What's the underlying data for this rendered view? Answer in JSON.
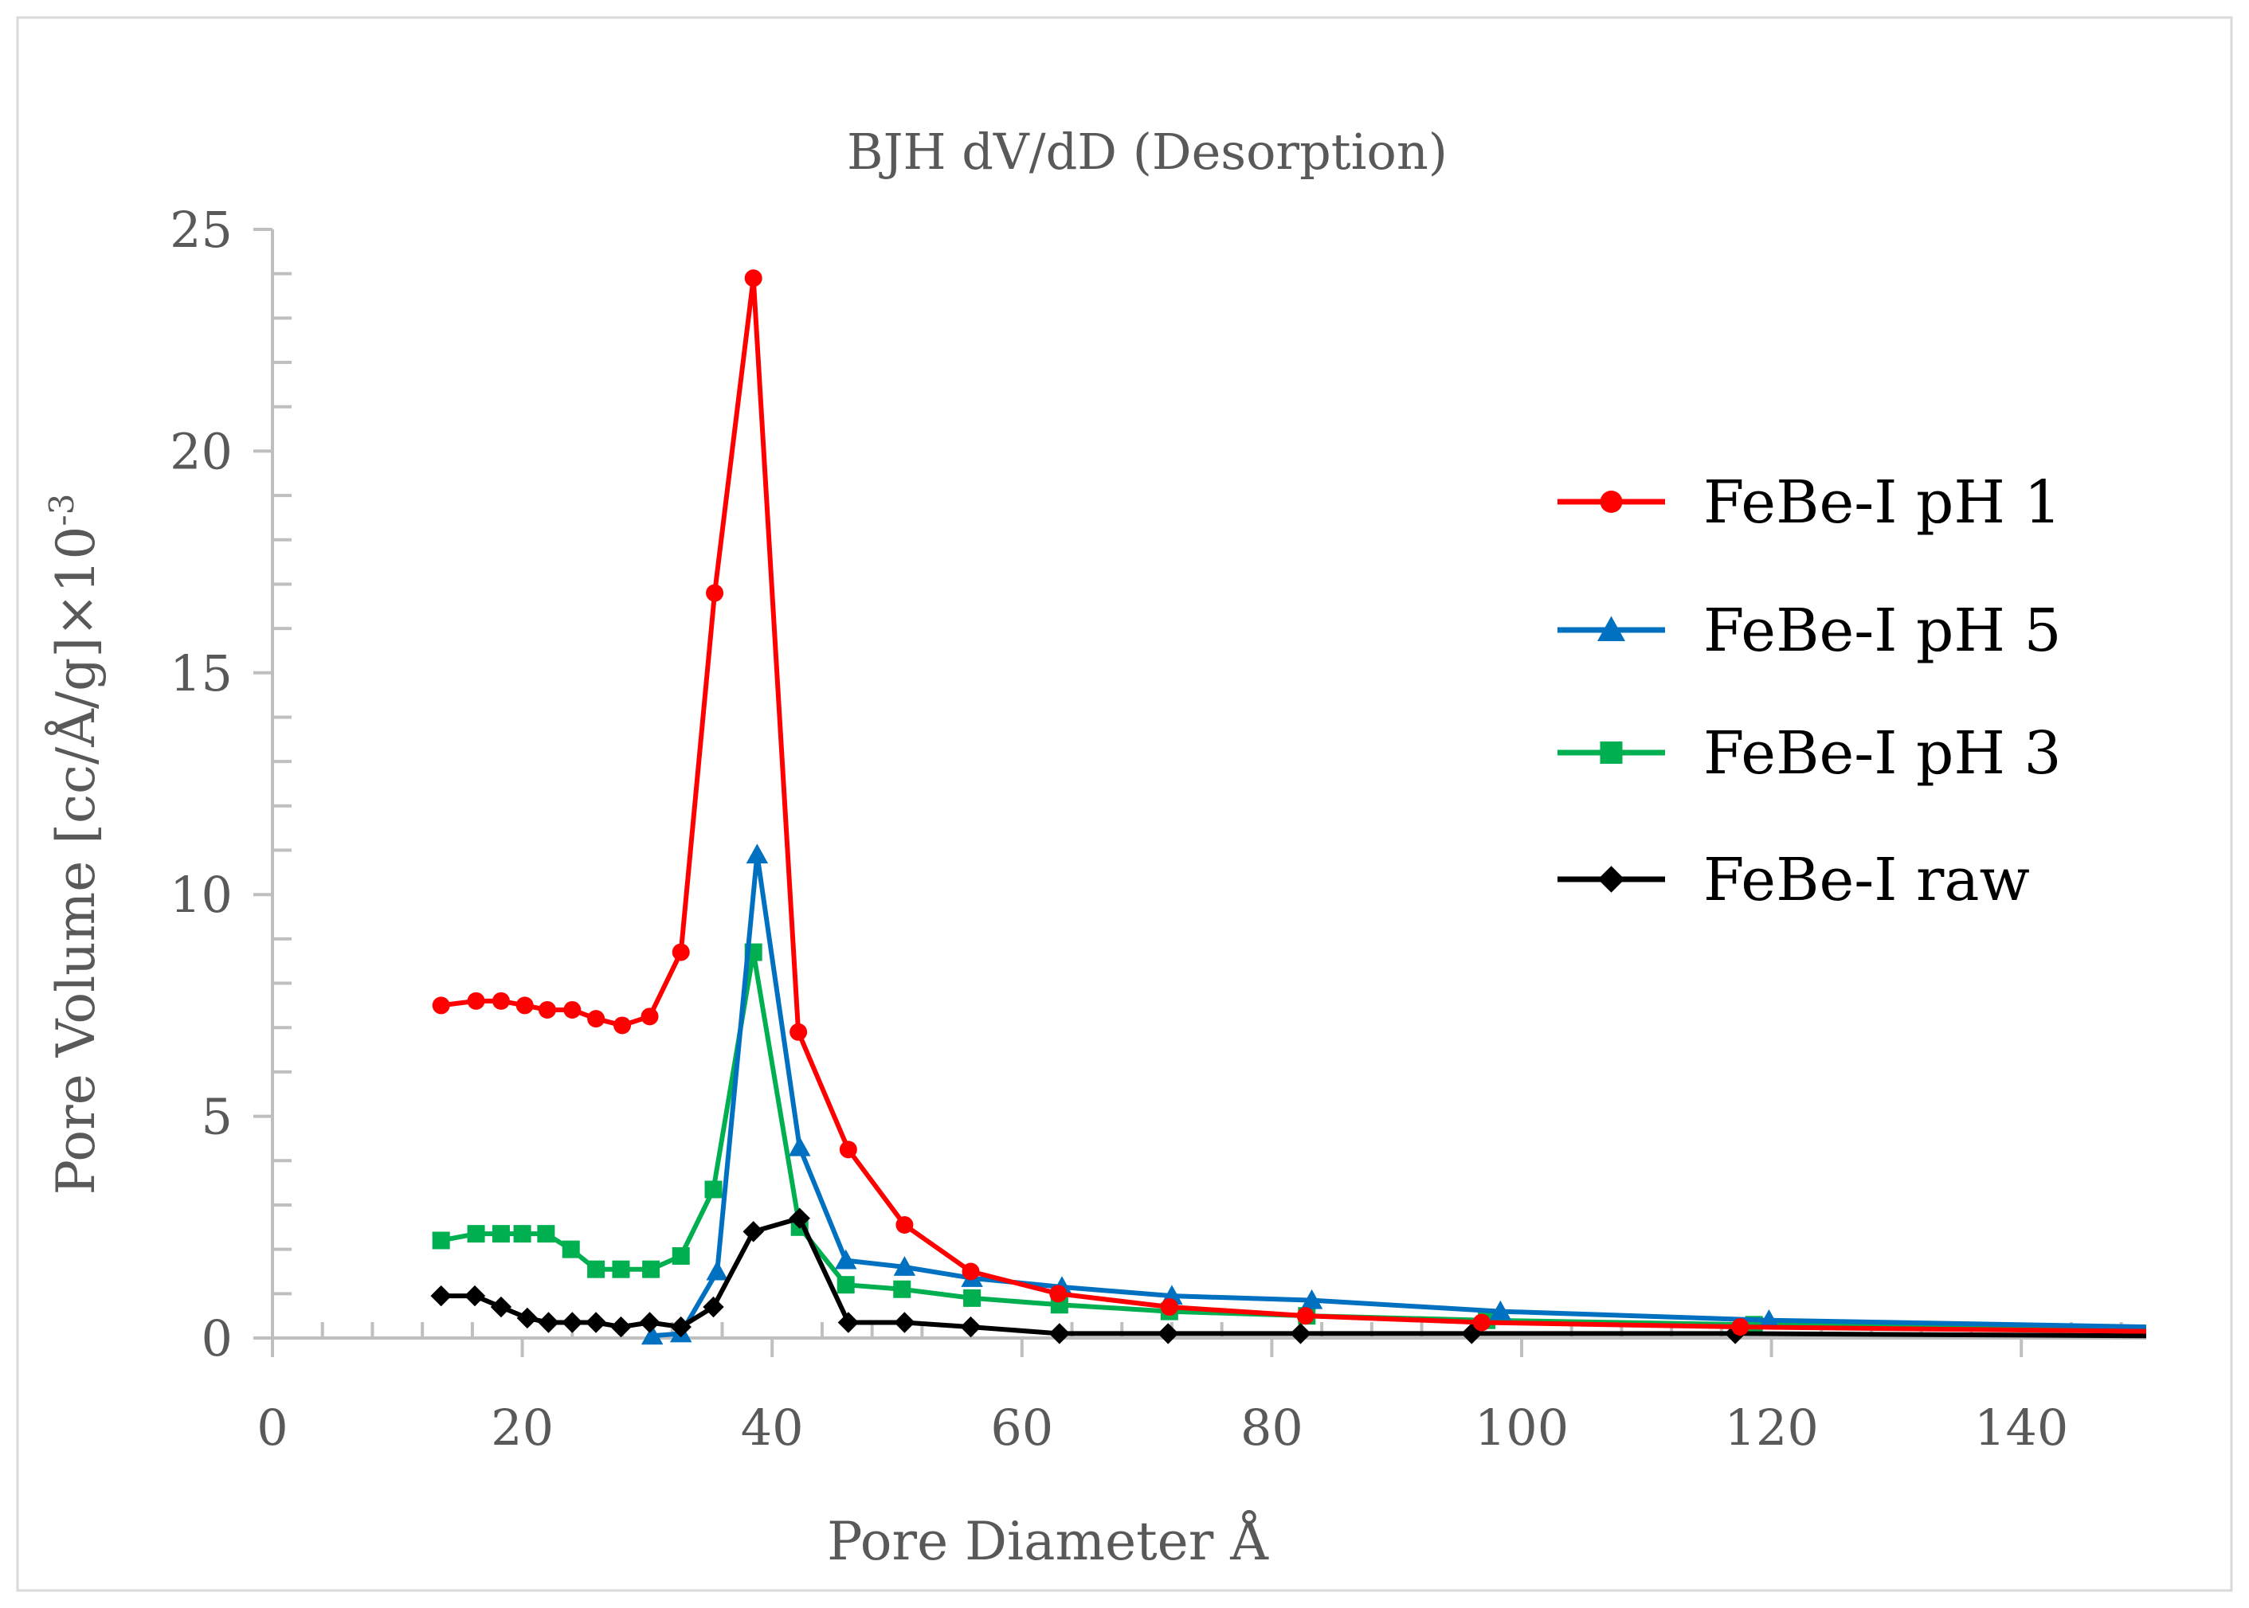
{
  "chart_data": {
    "type": "line",
    "title": "BJH dV/dD (Desorption)",
    "xlabel": "Pore Diameter Å",
    "ylabel": "Pore Volume [cc/Å/g]×10",
    "ylabel_exponent": "-3",
    "xlim": [
      0,
      150
    ],
    "ylim": [
      0,
      25
    ],
    "x_ticks": [
      "0",
      "20",
      "40",
      "60",
      "80",
      "100",
      "120",
      "140"
    ],
    "y_ticks": [
      "0",
      "5",
      "10",
      "15",
      "20",
      "25"
    ],
    "legend_position": "right",
    "series": [
      {
        "name": "FeBe-I pH 1",
        "color": "#ff0000",
        "marker": "circle",
        "x": [
          13.5,
          16.3,
          18.3,
          20.2,
          22.0,
          24.0,
          25.9,
          28.0,
          30.2,
          32.7,
          35.4,
          38.5,
          42.1,
          46.1,
          50.6,
          55.9,
          62.9,
          71.8,
          82.7,
          96.8,
          117.5,
          150
        ],
        "y": [
          7.5,
          7.6,
          7.6,
          7.5,
          7.4,
          7.4,
          7.2,
          7.05,
          7.25,
          8.7,
          16.8,
          23.9,
          6.9,
          4.25,
          2.55,
          1.5,
          1.0,
          0.7,
          0.5,
          0.35,
          0.25,
          0.15
        ]
      },
      {
        "name": "FeBe-I pH 5",
        "color": "#0070c0",
        "marker": "triangle",
        "x": [
          30.4,
          32.7,
          35.6,
          38.8,
          42.2,
          45.9,
          50.6,
          56.0,
          63.2,
          72.0,
          83.2,
          98.3,
          119.8,
          150
        ],
        "y": [
          0.05,
          0.1,
          1.5,
          10.9,
          4.3,
          1.75,
          1.6,
          1.35,
          1.15,
          0.95,
          0.85,
          0.6,
          0.4,
          0.25
        ]
      },
      {
        "name": "FeBe-I pH 3",
        "color": "#00b050",
        "marker": "square",
        "x": [
          13.5,
          16.3,
          18.3,
          20.0,
          21.9,
          23.9,
          25.9,
          27.9,
          30.3,
          32.7,
          35.3,
          38.5,
          42.2,
          45.9,
          50.4,
          56.0,
          63.0,
          71.8,
          82.8,
          97.2,
          118.6,
          150
        ],
        "y": [
          2.2,
          2.35,
          2.35,
          2.35,
          2.35,
          2.0,
          1.55,
          1.55,
          1.55,
          1.85,
          3.35,
          8.7,
          2.5,
          1.2,
          1.1,
          0.9,
          0.75,
          0.6,
          0.5,
          0.4,
          0.3,
          0.2
        ]
      },
      {
        "name": "FeBe-I raw",
        "color": "#000000",
        "marker": "diamond",
        "x": [
          13.5,
          16.2,
          18.3,
          20.4,
          22.1,
          24.0,
          25.9,
          27.9,
          30.2,
          32.7,
          35.3,
          38.5,
          42.2,
          46.1,
          50.6,
          55.9,
          63.0,
          71.7,
          82.3,
          96.0,
          117.1,
          150
        ],
        "y": [
          0.95,
          0.95,
          0.7,
          0.45,
          0.35,
          0.35,
          0.35,
          0.25,
          0.35,
          0.25,
          0.7,
          2.4,
          2.7,
          0.35,
          0.35,
          0.25,
          0.1,
          0.1,
          0.1,
          0.1,
          0.1,
          0.05
        ]
      }
    ]
  },
  "legend_order": [
    0,
    1,
    2,
    3
  ]
}
